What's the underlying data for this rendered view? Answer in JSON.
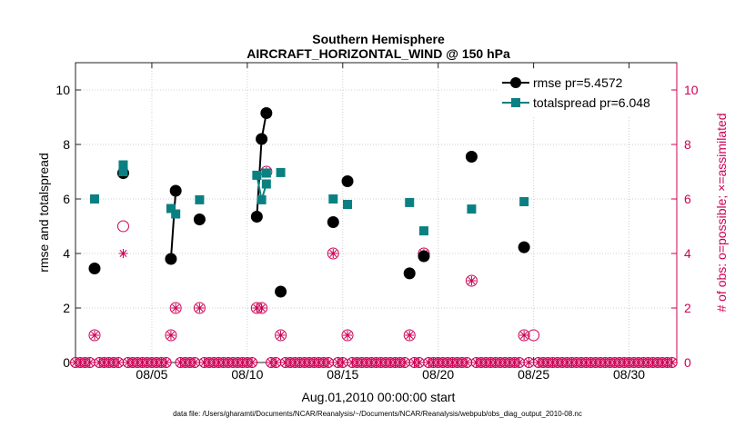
{
  "chart_data": {
    "type": "scatter",
    "title": [
      "Southern Hemisphere",
      "AIRCRAFT_HORIZONTAL_WIND @ 150 hPa"
    ],
    "xlabel": "Aug.01,2010 00:00:00 start",
    "ylabel_left": "rmse and totalspread",
    "ylabel_right": "# of obs: o=possible; ×=assimilated",
    "xlim": [
      1,
      32.5
    ],
    "ylim_left": [
      0,
      11
    ],
    "ylim_right": [
      0,
      11
    ],
    "x_ticks": [
      5,
      10,
      15,
      20,
      25,
      30
    ],
    "x_tick_labels": [
      "08/05",
      "08/10",
      "08/15",
      "08/20",
      "08/25",
      "08/30"
    ],
    "y_ticks_left": [
      0,
      2,
      4,
      6,
      8,
      10
    ],
    "y_tick_labels_left": [
      "0",
      "2",
      "4",
      "6",
      "8",
      "10"
    ],
    "y_ticks_right": [
      0,
      2,
      4,
      6,
      8,
      10
    ],
    "y_tick_labels_right": [
      "0",
      "2",
      "4",
      "6",
      "8",
      "10"
    ],
    "grid": true,
    "legend_position": "top-right",
    "colors": {
      "rmse": "#000000",
      "totalspread": "#0b8082",
      "obs": "#cc0055"
    },
    "series": [
      {
        "name": "rmse",
        "legend": "rmse pr=5.4572",
        "marker": "circle",
        "points": [
          [
            2.0,
            3.45
          ],
          [
            3.5,
            6.95
          ],
          [
            6.0,
            3.8
          ],
          [
            6.25,
            6.3
          ],
          [
            7.5,
            5.25
          ],
          [
            10.5,
            5.35
          ],
          [
            10.75,
            8.2
          ],
          [
            11.0,
            9.15
          ],
          [
            11.75,
            2.6
          ],
          [
            14.5,
            5.15
          ],
          [
            15.25,
            6.65
          ],
          [
            18.5,
            3.27
          ],
          [
            19.25,
            3.9
          ],
          [
            21.75,
            7.55
          ],
          [
            24.5,
            4.23
          ]
        ],
        "segments": [
          [
            [
              6.0,
              3.8
            ],
            [
              6.25,
              6.3
            ]
          ],
          [
            [
              10.5,
              5.35
            ],
            [
              10.75,
              8.2
            ],
            [
              11.0,
              9.15
            ]
          ]
        ]
      },
      {
        "name": "totalspread",
        "legend": "totalspread pr=6.048",
        "marker": "square",
        "points": [
          [
            2.0,
            6.0
          ],
          [
            3.5,
            7.25
          ],
          [
            3.5,
            7.0
          ],
          [
            6.0,
            5.65
          ],
          [
            6.25,
            5.45
          ],
          [
            7.5,
            5.97
          ],
          [
            10.5,
            6.87
          ],
          [
            10.75,
            5.97
          ],
          [
            11.0,
            6.55
          ],
          [
            11.0,
            6.95
          ],
          [
            11.75,
            6.97
          ],
          [
            14.5,
            6.0
          ],
          [
            15.25,
            5.8
          ],
          [
            18.5,
            5.87
          ],
          [
            19.25,
            4.83
          ],
          [
            21.75,
            5.63
          ],
          [
            24.5,
            5.9
          ]
        ],
        "segments": [
          [
            [
              6.0,
              5.65
            ],
            [
              6.25,
              5.45
            ]
          ],
          [
            [
              10.5,
              6.87
            ],
            [
              10.75,
              5.97
            ],
            [
              11.0,
              6.55
            ]
          ]
        ]
      },
      {
        "name": "obs_possible",
        "marker": "open-circle",
        "points": [
          [
            2.0,
            1
          ],
          [
            3.5,
            5
          ],
          [
            6.0,
            1
          ],
          [
            6.25,
            2
          ],
          [
            7.5,
            2
          ],
          [
            10.5,
            2
          ],
          [
            10.75,
            2
          ],
          [
            11.0,
            7
          ],
          [
            11.75,
            1
          ],
          [
            14.5,
            4
          ],
          [
            15.25,
            1
          ],
          [
            18.5,
            1
          ],
          [
            19.25,
            4
          ],
          [
            21.75,
            3
          ],
          [
            24.5,
            1
          ],
          [
            25.0,
            1
          ]
        ],
        "zero_range": [
          1,
          32.25
        ],
        "zero_step": 0.25
      },
      {
        "name": "obs_assimilated",
        "marker": "asterisk",
        "points": [
          [
            2.0,
            1
          ],
          [
            3.5,
            4
          ],
          [
            6.0,
            1
          ],
          [
            6.25,
            2
          ],
          [
            7.5,
            2
          ],
          [
            10.5,
            2
          ],
          [
            10.75,
            2
          ],
          [
            11.0,
            7
          ],
          [
            11.75,
            1
          ],
          [
            14.5,
            4
          ],
          [
            15.25,
            1
          ],
          [
            18.5,
            1
          ],
          [
            19.25,
            4
          ],
          [
            21.75,
            3
          ],
          [
            24.5,
            1
          ]
        ]
      }
    ],
    "footer": "data file: /Users/gharamti/Documents/NCAR/Reanalysis/~/Documents/NCAR/Reanalysis/webpub/obs_diag_output_2010-08.nc"
  }
}
